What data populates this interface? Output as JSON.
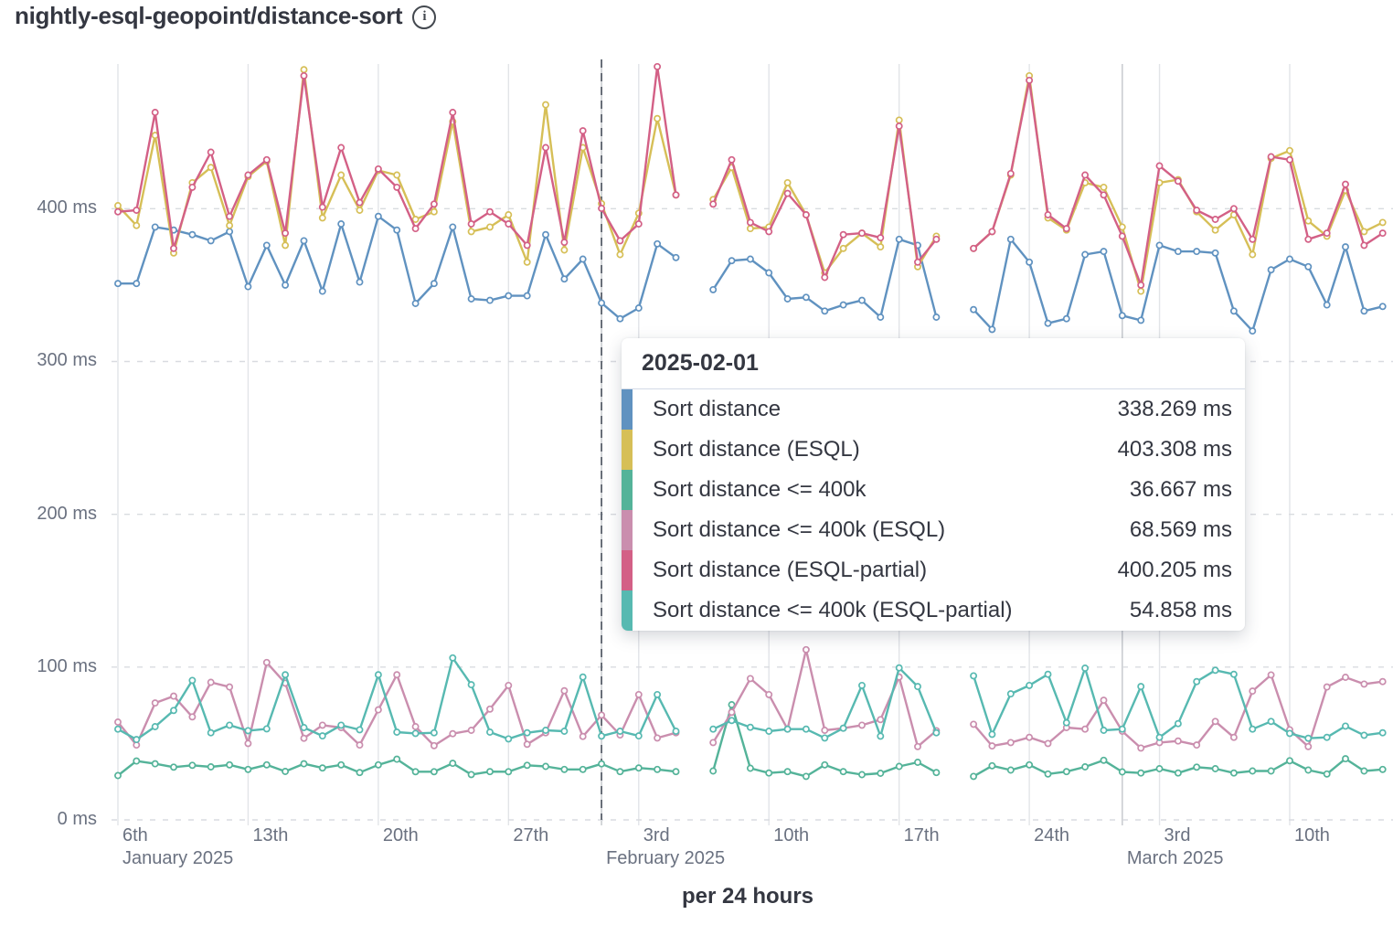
{
  "header": {
    "title": "nightly-esql-geopoint/distance-sort",
    "info_icon": "i"
  },
  "tooltip": {
    "date": "2025-02-01",
    "rows": [
      {
        "label": "Sort distance",
        "value": "338.269 ms",
        "color": "blue"
      },
      {
        "label": "Sort distance (ESQL)",
        "value": "403.308 ms",
        "color": "yellow"
      },
      {
        "label": "Sort distance <= 400k",
        "value": "36.667 ms",
        "color": "green"
      },
      {
        "label": "Sort distance <= 400k (ESQL)",
        "value": "68.569 ms",
        "color": "pink"
      },
      {
        "label": "Sort distance (ESQL-partial)",
        "value": "400.205 ms",
        "color": "crimson"
      },
      {
        "label": "Sort distance <= 400k (ESQL-partial)",
        "value": "54.858 ms",
        "color": "teal"
      }
    ]
  },
  "colors": {
    "blue": "#6092C0",
    "yellow": "#D6BF57",
    "green": "#54B399",
    "pink": "#CA8EAE",
    "crimson": "#D36086",
    "teal": "#57B9B1"
  },
  "chart_data": {
    "type": "line",
    "title": "nightly-esql-geopoint/distance-sort",
    "xlabel": "per 24 hours",
    "unit": "ms",
    "ylim": [
      0,
      495
    ],
    "grid": true,
    "legend_position": "tooltip-only",
    "hover": {
      "day": 26,
      "date": "2025-02-01"
    },
    "yticks": [
      {
        "value": 0,
        "label": "0 ms"
      },
      {
        "value": 100,
        "label": "100 ms"
      },
      {
        "value": 200,
        "label": "200 ms"
      },
      {
        "value": 300,
        "label": "300 ms"
      },
      {
        "value": 400,
        "label": "400 ms"
      }
    ],
    "xticks": [
      {
        "day": 0,
        "label": "6th"
      },
      {
        "day": 7,
        "label": "13th"
      },
      {
        "day": 14,
        "label": "20th"
      },
      {
        "day": 21,
        "label": "27th"
      },
      {
        "day": 28,
        "label": "3rd"
      },
      {
        "day": 35,
        "label": "10th"
      },
      {
        "day": 42,
        "label": "17th"
      },
      {
        "day": 49,
        "label": "24th"
      },
      {
        "day": 56,
        "label": "3rd"
      },
      {
        "day": 63,
        "label": "10th"
      }
    ],
    "months": [
      {
        "label": "January 2025",
        "day": 0,
        "line": false
      },
      {
        "label": "February 2025",
        "day": 26,
        "line": true
      },
      {
        "label": "March 2025",
        "day": 54,
        "line": true
      }
    ],
    "x": [
      "2025-01-06",
      "2025-01-07",
      "2025-01-08",
      "2025-01-09",
      "2025-01-10",
      "2025-01-11",
      "2025-01-12",
      "2025-01-13",
      "2025-01-14",
      "2025-01-15",
      "2025-01-16",
      "2025-01-17",
      "2025-01-18",
      "2025-01-19",
      "2025-01-20",
      "2025-01-21",
      "2025-01-22",
      "2025-01-23",
      "2025-01-24",
      "2025-01-25",
      "2025-01-26",
      "2025-01-27",
      "2025-01-28",
      "2025-01-29",
      "2025-01-30",
      "2025-01-31",
      "2025-02-01",
      "2025-02-02",
      "2025-02-03",
      "2025-02-04",
      "2025-02-05",
      "2025-02-06",
      "2025-02-07",
      "2025-02-08",
      "2025-02-09",
      "2025-02-10",
      "2025-02-11",
      "2025-02-12",
      "2025-02-13",
      "2025-02-14",
      "2025-02-15",
      "2025-02-16",
      "2025-02-17",
      "2025-02-18",
      "2025-02-19",
      "2025-02-20",
      "2025-02-21",
      "2025-02-22",
      "2025-02-23",
      "2025-02-24",
      "2025-02-25",
      "2025-02-26",
      "2025-02-27",
      "2025-02-28",
      "2025-03-01",
      "2025-03-02",
      "2025-03-03",
      "2025-03-04",
      "2025-03-05",
      "2025-03-06",
      "2025-03-07",
      "2025-03-08",
      "2025-03-09",
      "2025-03-10",
      "2025-03-11",
      "2025-03-12",
      "2025-03-13",
      "2025-03-14",
      "2025-03-15"
    ],
    "series": [
      {
        "name": "Sort distance",
        "slug": "sort-distance",
        "color": "blue",
        "values": [
          351,
          351,
          388,
          386,
          383,
          379,
          385,
          349,
          376,
          350,
          379,
          346,
          390,
          352,
          395,
          386,
          338,
          351,
          388,
          341,
          340,
          343,
          343,
          383,
          354,
          367,
          338.269,
          328,
          335,
          377,
          368,
          null,
          347,
          366,
          367,
          358,
          341,
          342,
          333,
          337,
          340,
          329,
          380,
          376,
          329,
          null,
          334,
          321,
          380,
          365,
          325,
          328,
          370,
          372,
          330,
          327,
          376,
          372,
          372,
          371,
          333,
          320,
          360,
          367,
          362,
          337,
          375,
          333,
          336
        ]
      },
      {
        "name": "Sort distance (ESQL)",
        "slug": "sort-distance-esql",
        "color": "yellow",
        "values": [
          402,
          389,
          448,
          371,
          417,
          427,
          389,
          421,
          431,
          376,
          491,
          394,
          422,
          399,
          425,
          422,
          393,
          398,
          457,
          385,
          388,
          396,
          365,
          468,
          373,
          440,
          403.308,
          370,
          397,
          459,
          409,
          null,
          406,
          427,
          387,
          388,
          417,
          396,
          358,
          374,
          384,
          375,
          458,
          362,
          382,
          null,
          374,
          385,
          422,
          487,
          394,
          386,
          417,
          414,
          388,
          346,
          417,
          419,
          398,
          386,
          396,
          370,
          433,
          438,
          392,
          382,
          412,
          385,
          391
        ]
      },
      {
        "name": "Sort distance <= 400k",
        "slug": "sort-distance-400k",
        "color": "green",
        "values": [
          29,
          38.5,
          36.7,
          34.5,
          35.7,
          34.7,
          36,
          33,
          36,
          31.7,
          36.7,
          34,
          36,
          31,
          36,
          39.7,
          31.5,
          31.5,
          37,
          29.7,
          31.6,
          31.5,
          35.7,
          35,
          33,
          33,
          36.667,
          31.6,
          34,
          33,
          31.6,
          null,
          32,
          75.4,
          33.8,
          30.7,
          31.6,
          28.5,
          36,
          31.6,
          29.6,
          30.5,
          35,
          37.7,
          31,
          null,
          28.5,
          35.4,
          32.6,
          36,
          30,
          31.6,
          34.7,
          39,
          31.4,
          30.7,
          33.5,
          30.7,
          34.5,
          33.5,
          30.7,
          32,
          32,
          38.7,
          32.6,
          30,
          40,
          32,
          33
        ]
      },
      {
        "name": "Sort distance <= 400k (ESQL)",
        "slug": "sort-distance-400k-esql",
        "color": "pink",
        "values": [
          64,
          49,
          76.5,
          81,
          67.4,
          90,
          87,
          50,
          103,
          89.5,
          53.4,
          62,
          60.4,
          49,
          72,
          95,
          61,
          48.6,
          56.4,
          58.6,
          72.5,
          88,
          49.5,
          57,
          84.5,
          54.6,
          68.569,
          55.6,
          82,
          53.6,
          57,
          null,
          50.6,
          70.4,
          92.5,
          82,
          59.4,
          111.4,
          58.6,
          60,
          62,
          65.6,
          93.5,
          48,
          58.4,
          null,
          62.6,
          48.4,
          50.6,
          54,
          50,
          60.4,
          59.4,
          78.3,
          58,
          47,
          50.6,
          51.6,
          49,
          64.4,
          54,
          84.3,
          94.9,
          59,
          48,
          87,
          93.3,
          88.9,
          90.5
        ]
      },
      {
        "name": "Sort distance (ESQL-partial)",
        "slug": "sort-distance-esql-partial",
        "color": "crimson",
        "values": [
          398,
          399,
          463,
          374,
          414,
          437,
          395,
          422,
          432,
          384,
          487,
          401,
          440,
          404,
          426,
          414,
          387,
          403,
          463,
          390,
          398,
          390,
          376,
          440,
          378,
          451,
          400.205,
          379,
          390,
          493,
          409,
          null,
          403,
          432,
          391,
          385,
          410,
          396,
          355,
          383,
          384,
          381,
          454,
          365,
          380,
          null,
          374,
          385,
          423,
          484,
          396,
          387,
          422,
          409,
          382,
          350,
          428,
          418,
          399,
          393,
          400,
          380,
          434,
          432,
          380,
          384,
          416,
          376,
          384
        ]
      },
      {
        "name": "Sort distance <= 400k (ESQL-partial)",
        "slug": "sort-distance-400k-esql-partial",
        "color": "teal",
        "values": [
          59.4,
          52.6,
          61,
          71.6,
          91.3,
          57,
          62,
          58.4,
          59.6,
          95,
          60.4,
          55,
          62,
          59,
          95,
          57.4,
          56.6,
          57,
          106,
          88.5,
          57.4,
          53,
          57,
          58.6,
          58,
          93.5,
          54.858,
          58,
          55,
          82,
          58,
          null,
          59.4,
          65,
          60.6,
          58,
          59.4,
          59.4,
          53.6,
          60,
          88,
          54.8,
          99.5,
          87.3,
          57,
          null,
          94.3,
          56,
          82.5,
          88,
          95.3,
          63.6,
          99.3,
          58.6,
          59.4,
          87.3,
          54,
          63,
          90.5,
          97.9,
          95.3,
          59.4,
          64.4,
          56.6,
          53.4,
          54,
          61.4,
          55.4,
          57
        ]
      }
    ]
  }
}
